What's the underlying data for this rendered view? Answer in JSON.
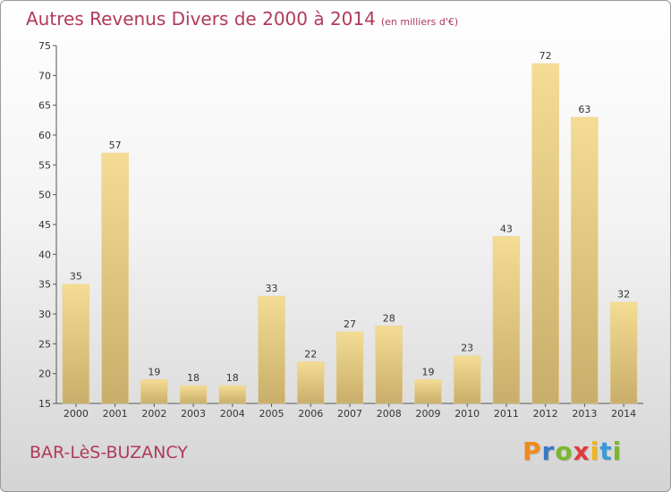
{
  "header": {
    "title": "Autres Revenus Divers de 2000 à 2014",
    "unit": "(en milliers d'€)"
  },
  "footer": {
    "commune": "BAR-LèS-BUZANCY",
    "logo_letters": [
      "P",
      "r",
      "o",
      "x",
      "i",
      "t",
      "i"
    ],
    "logo_colors": [
      "#f08a1c",
      "#3a78c3",
      "#7ab72e",
      "#e03a3a",
      "#f0b51c",
      "#3a9ad9",
      "#7ab72e"
    ]
  },
  "chart_data": {
    "type": "bar",
    "title": "Autres Revenus Divers de 2000 à 2014",
    "categories": [
      "2000",
      "2001",
      "2002",
      "2003",
      "2004",
      "2005",
      "2006",
      "2007",
      "2008",
      "2009",
      "2010",
      "2011",
      "2012",
      "2013",
      "2014"
    ],
    "values": [
      35,
      57,
      19,
      18,
      18,
      33,
      22,
      27,
      28,
      19,
      23,
      43,
      72,
      63,
      32
    ],
    "ylim": [
      15,
      75
    ],
    "yticks": [
      15,
      20,
      25,
      30,
      35,
      40,
      45,
      50,
      55,
      60,
      65,
      70,
      75
    ],
    "grid": false,
    "bar_color_top": "#f5dc94",
    "bar_color_bottom": "#c8ae6a"
  }
}
